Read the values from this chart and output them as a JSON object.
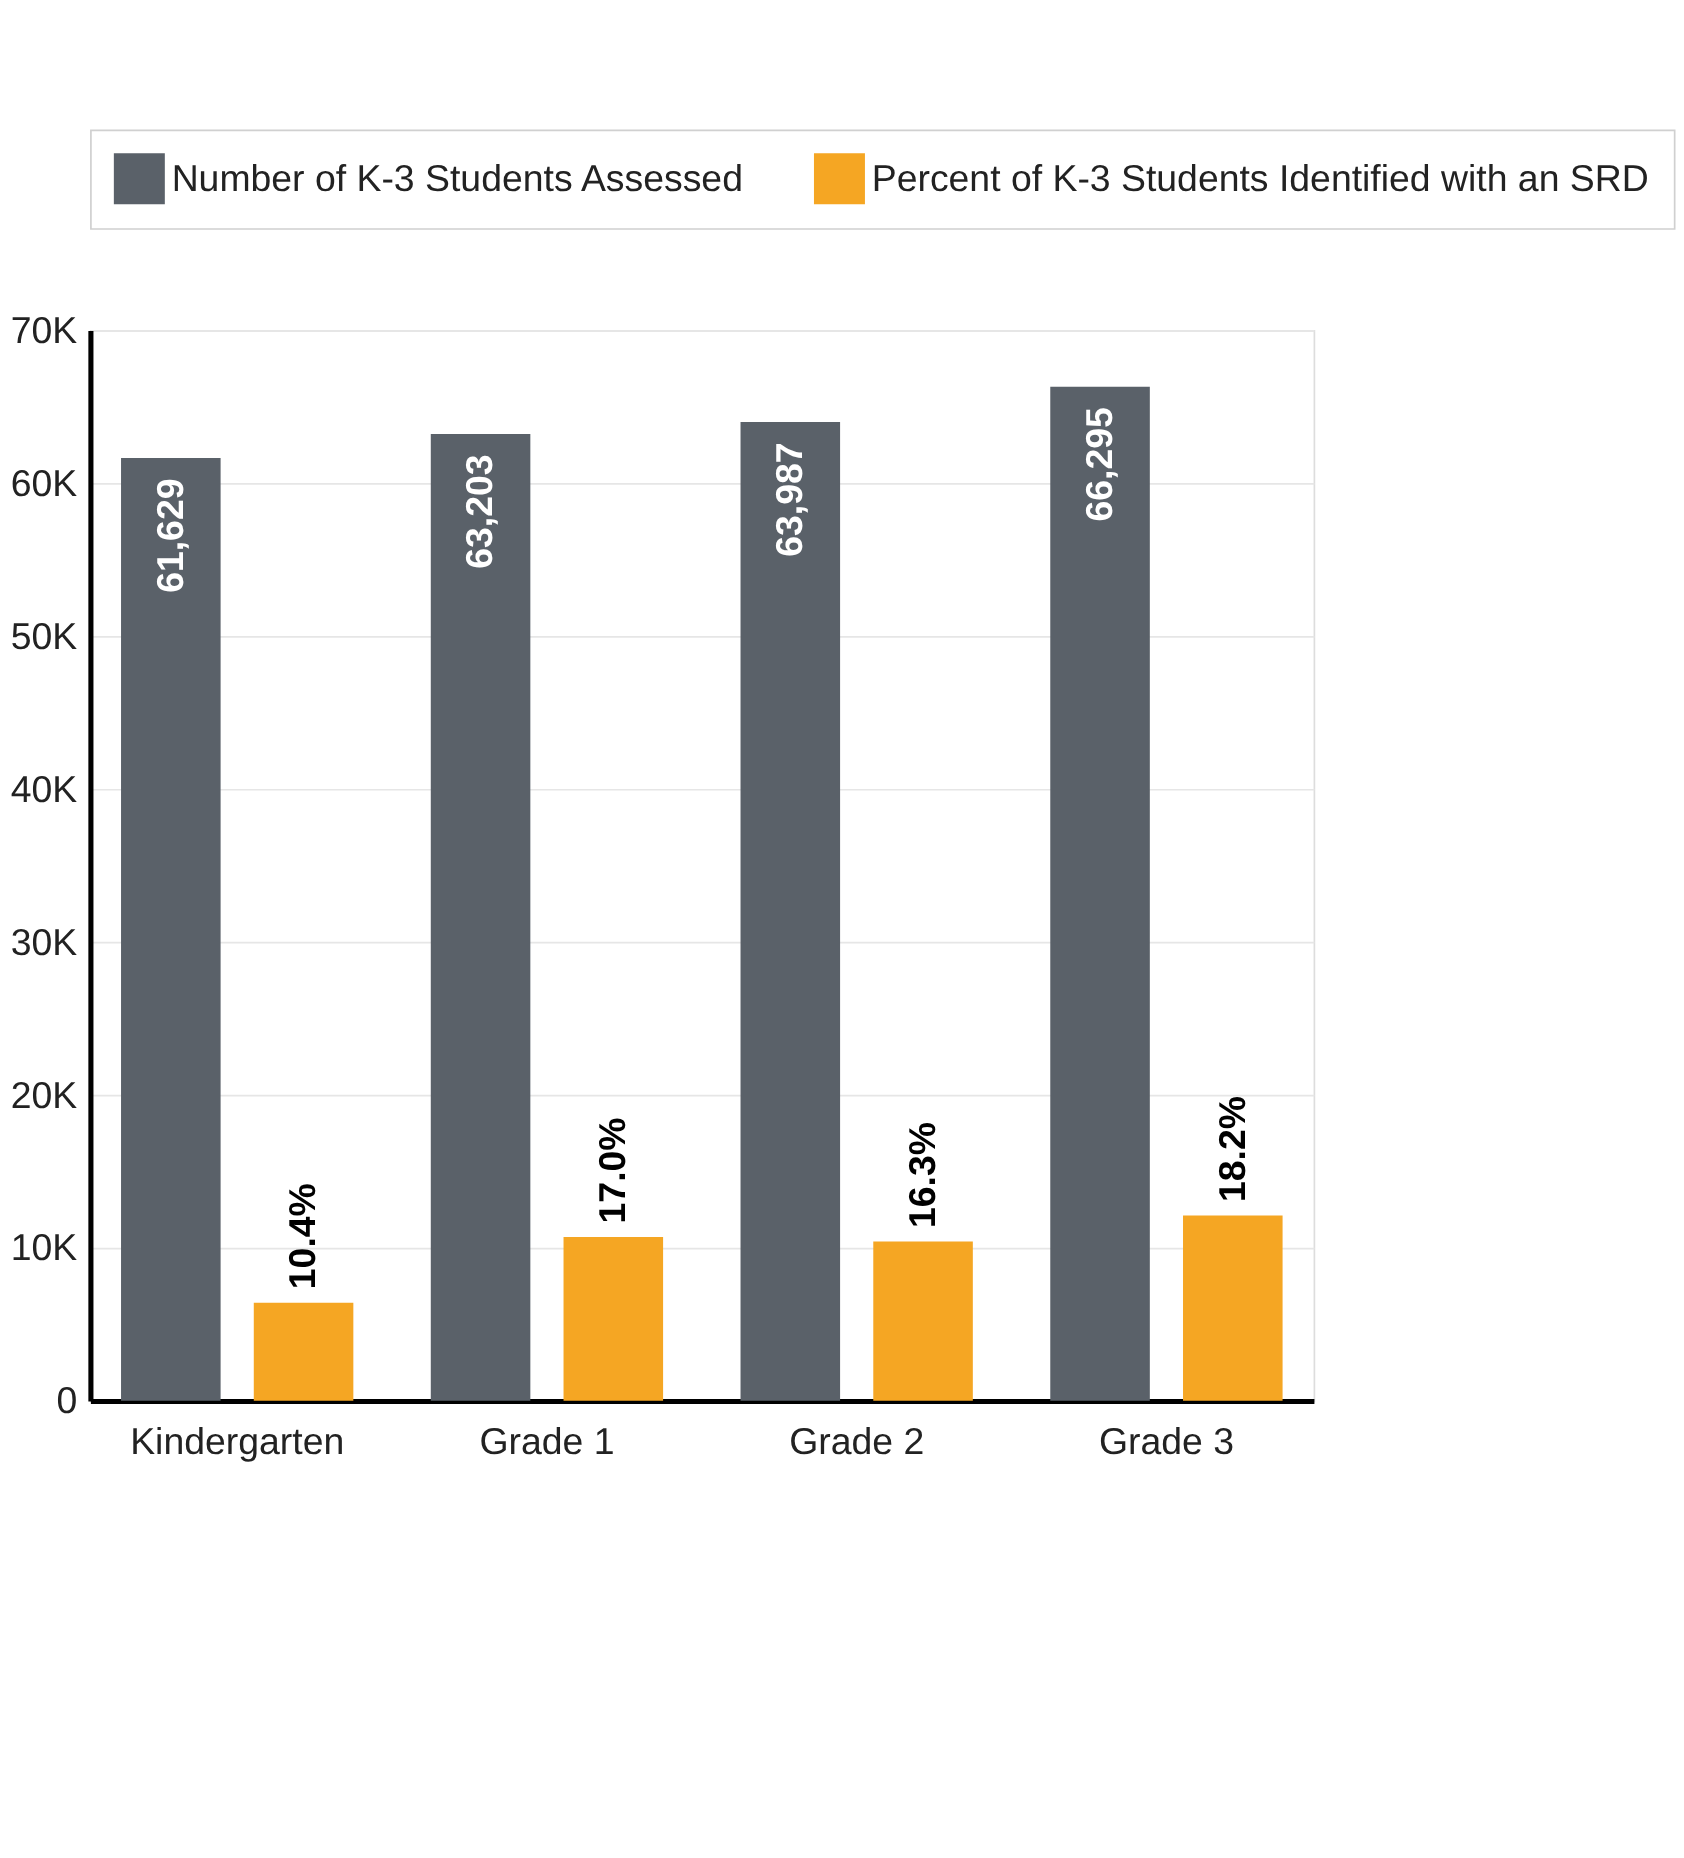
{
  "chart_data": {
    "type": "bar",
    "categories": [
      "Kindergarten",
      "Grade 1",
      "Grade 2",
      "Grade 3"
    ],
    "series": [
      {
        "name": "Number of K-3 Students Assessed",
        "color": "#5a6169",
        "values": [
          61629,
          63203,
          63987,
          66295
        ],
        "value_labels": [
          "61,629",
          "63,203",
          "63,987",
          "66,295"
        ]
      },
      {
        "name": "Percent of K-3 Students Identified with an SRD",
        "color": "#f5a623",
        "values": [
          6400,
          10700,
          10400,
          12100
        ]
      }
    ],
    "annotations": [
      "10.4%",
      "17.0%",
      "16.3%",
      "18.2%"
    ],
    "ylim": [
      0,
      70000
    ],
    "yticks": [
      {
        "value": 0,
        "label": "0"
      },
      {
        "value": 10000,
        "label": "10K"
      },
      {
        "value": 20000,
        "label": "20K"
      },
      {
        "value": 30000,
        "label": "30K"
      },
      {
        "value": 40000,
        "label": "40K"
      },
      {
        "value": 50000,
        "label": "50K"
      },
      {
        "value": 60000,
        "label": "60K"
      },
      {
        "value": 70000,
        "label": "70K"
      }
    ],
    "grid": "y",
    "legend": "top"
  }
}
